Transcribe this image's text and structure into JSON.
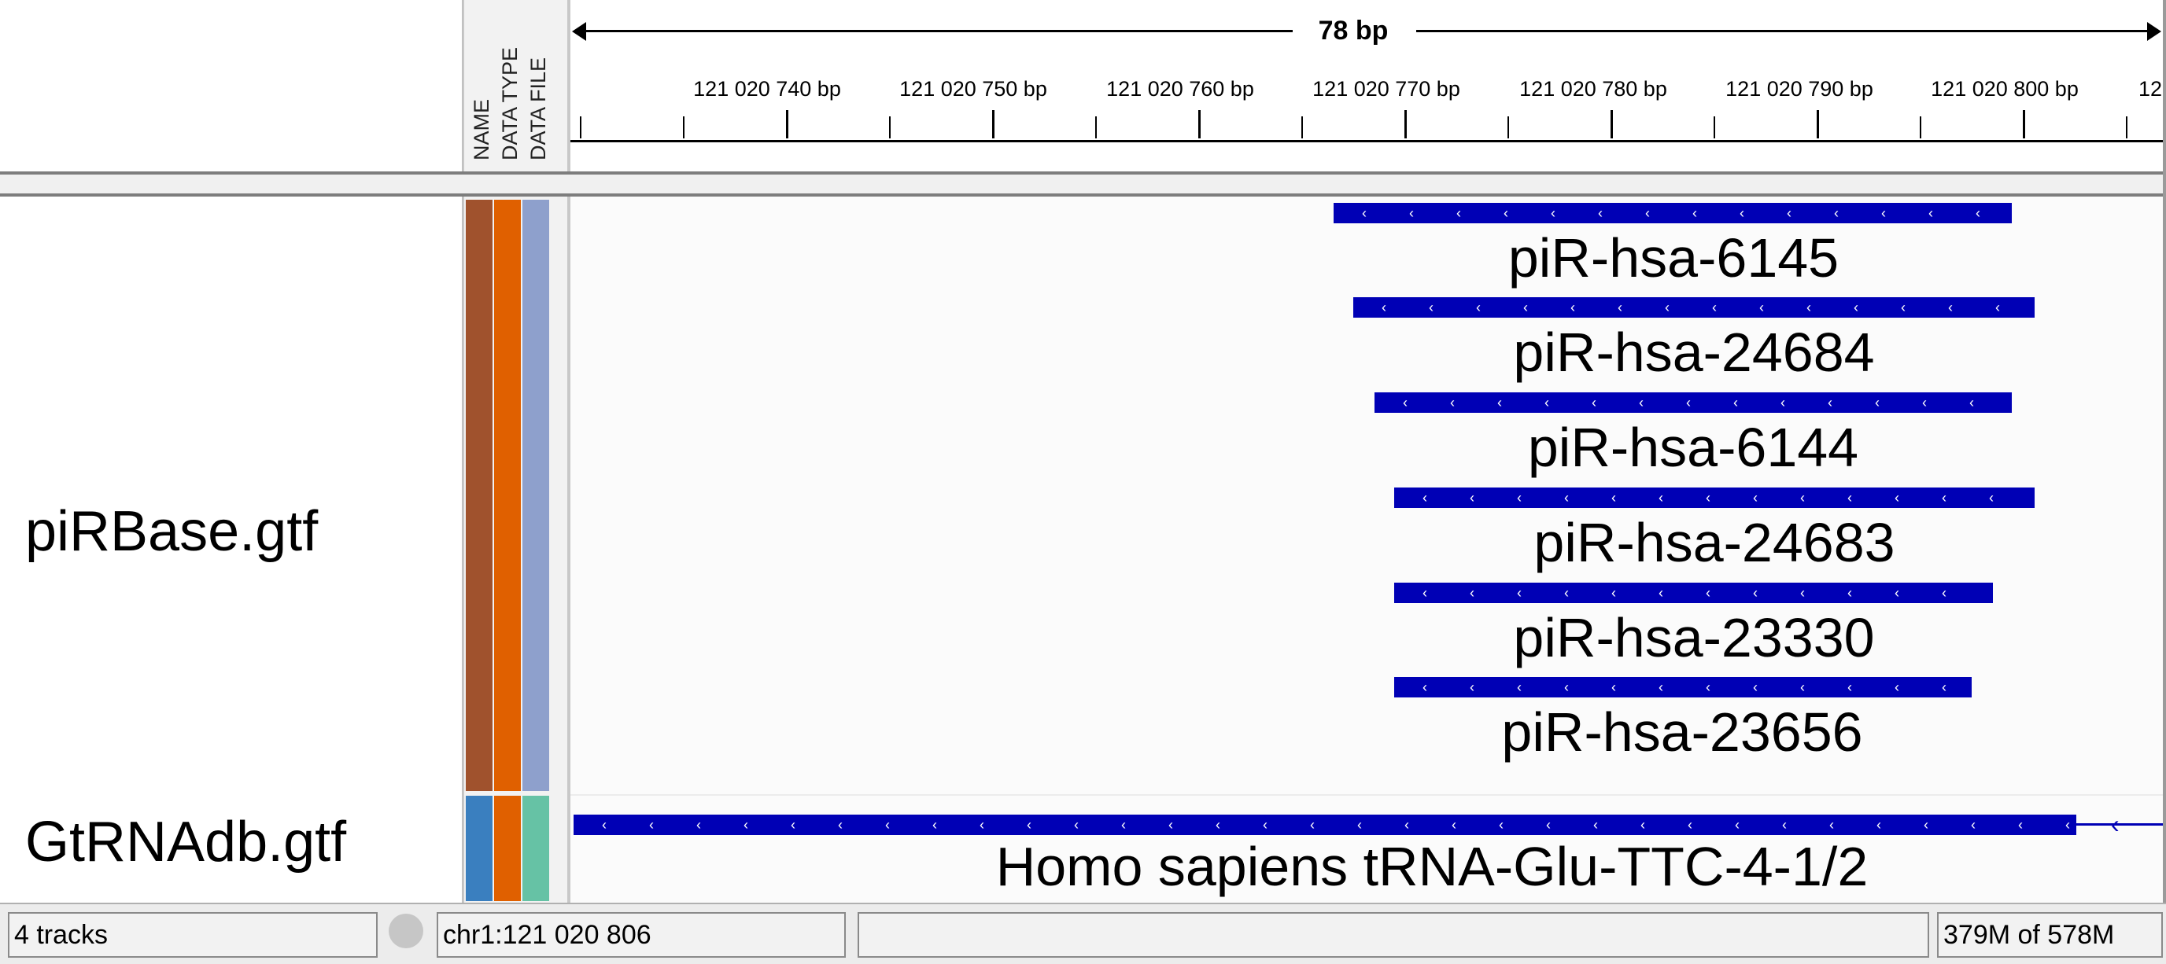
{
  "ruler": {
    "span": "78 bp",
    "ticks": [
      "121 020 740 bp",
      "121 020 750 bp",
      "121 020 760 bp",
      "121 020 770 bp",
      "121 020 780 bp",
      "121 020 790 bp",
      "121 020 800 bp",
      "12"
    ]
  },
  "attributes": {
    "headers": [
      "NAME",
      "DATA TYPE",
      "DATA FILE"
    ],
    "colors": {
      "pirbase": [
        "#a0522d",
        "#e06000",
        "#8ea0cc"
      ],
      "gtrnadb": [
        "#3a7fbf",
        "#e06000",
        "#66c2a5"
      ]
    }
  },
  "tracks": [
    {
      "name": "piRBase.gtf",
      "features": [
        {
          "label": "piR-hsa-6145"
        },
        {
          "label": "piR-hsa-24684"
        },
        {
          "label": "piR-hsa-6144"
        },
        {
          "label": "piR-hsa-24683"
        },
        {
          "label": "piR-hsa-23330"
        },
        {
          "label": "piR-hsa-23656"
        }
      ]
    },
    {
      "name": "GtRNAdb.gtf",
      "features": [
        {
          "label": "Homo  sapiens  tRNA-Glu-TTC-4-1/2"
        }
      ]
    }
  ],
  "feature_color": "#0000b5",
  "status": {
    "tracks": "4 tracks",
    "locus": "chr1:121 020 806",
    "memory": "379M of 578M"
  }
}
